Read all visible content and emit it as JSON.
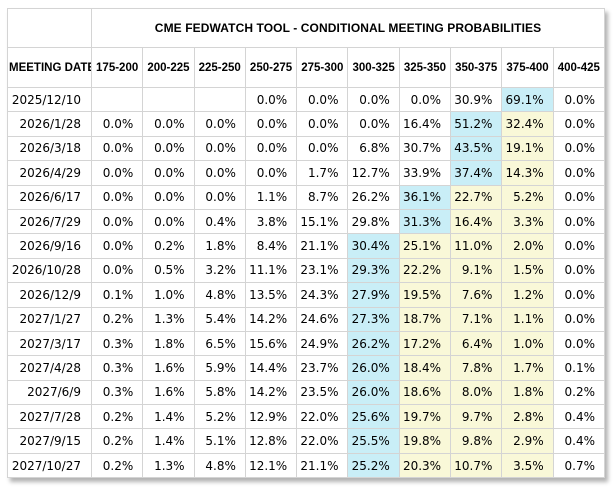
{
  "table": {
    "title": "CME FEDWATCH TOOL - CONDITIONAL MEETING PROBABILITIES",
    "date_column_header": "MEETING DATE",
    "rate_columns": [
      "175-200",
      "200-225",
      "225-250",
      "250-275",
      "275-300",
      "300-325",
      "325-350",
      "350-375",
      "375-400",
      "400-425"
    ],
    "rows": [
      {
        "date": "2025/12/10",
        "values": [
          "",
          "",
          "",
          "0.0%",
          "0.0%",
          "0.0%",
          "0.0%",
          "30.9%",
          "69.1%",
          "0.0%"
        ],
        "styles": [
          "",
          "",
          "",
          "",
          "",
          "",
          "",
          "",
          "blue",
          ""
        ]
      },
      {
        "date": "2026/1/28",
        "values": [
          "0.0%",
          "0.0%",
          "0.0%",
          "0.0%",
          "0.0%",
          "0.0%",
          "16.4%",
          "51.2%",
          "32.4%",
          "0.0%"
        ],
        "styles": [
          "",
          "",
          "",
          "",
          "",
          "",
          "",
          "blue",
          "yellow",
          ""
        ]
      },
      {
        "date": "2026/3/18",
        "values": [
          "0.0%",
          "0.0%",
          "0.0%",
          "0.0%",
          "0.0%",
          "6.8%",
          "30.7%",
          "43.5%",
          "19.1%",
          "0.0%"
        ],
        "styles": [
          "",
          "",
          "",
          "",
          "",
          "",
          "",
          "blue",
          "yellow",
          ""
        ]
      },
      {
        "date": "2026/4/29",
        "values": [
          "0.0%",
          "0.0%",
          "0.0%",
          "0.0%",
          "1.7%",
          "12.7%",
          "33.9%",
          "37.4%",
          "14.3%",
          "0.0%"
        ],
        "styles": [
          "",
          "",
          "",
          "",
          "",
          "",
          "",
          "blue",
          "yellow",
          ""
        ]
      },
      {
        "date": "2026/6/17",
        "values": [
          "0.0%",
          "0.0%",
          "0.0%",
          "1.1%",
          "8.7%",
          "26.2%",
          "36.1%",
          "22.7%",
          "5.2%",
          "0.0%"
        ],
        "styles": [
          "",
          "",
          "",
          "",
          "",
          "",
          "blue",
          "yellow",
          "yellow",
          ""
        ]
      },
      {
        "date": "2026/7/29",
        "values": [
          "0.0%",
          "0.0%",
          "0.4%",
          "3.8%",
          "15.1%",
          "29.8%",
          "31.3%",
          "16.4%",
          "3.3%",
          "0.0%"
        ],
        "styles": [
          "",
          "",
          "",
          "",
          "",
          "",
          "blue",
          "yellow",
          "yellow",
          ""
        ]
      },
      {
        "date": "2026/9/16",
        "values": [
          "0.0%",
          "0.2%",
          "1.8%",
          "8.4%",
          "21.1%",
          "30.4%",
          "25.1%",
          "11.0%",
          "2.0%",
          "0.0%"
        ],
        "styles": [
          "",
          "",
          "",
          "",
          "",
          "blue",
          "yellow",
          "yellow",
          "yellow",
          ""
        ]
      },
      {
        "date": "2026/10/28",
        "values": [
          "0.0%",
          "0.5%",
          "3.2%",
          "11.1%",
          "23.1%",
          "29.3%",
          "22.2%",
          "9.1%",
          "1.5%",
          "0.0%"
        ],
        "styles": [
          "",
          "",
          "",
          "",
          "",
          "blue",
          "yellow",
          "yellow",
          "yellow",
          ""
        ]
      },
      {
        "date": "2026/12/9",
        "values": [
          "0.1%",
          "1.0%",
          "4.8%",
          "13.5%",
          "24.3%",
          "27.9%",
          "19.5%",
          "7.6%",
          "1.2%",
          "0.0%"
        ],
        "styles": [
          "",
          "",
          "",
          "",
          "",
          "blue",
          "yellow",
          "yellow",
          "yellow",
          ""
        ]
      },
      {
        "date": "2027/1/27",
        "values": [
          "0.2%",
          "1.3%",
          "5.4%",
          "14.2%",
          "24.6%",
          "27.3%",
          "18.7%",
          "7.1%",
          "1.1%",
          "0.0%"
        ],
        "styles": [
          "",
          "",
          "",
          "",
          "",
          "blue",
          "yellow",
          "yellow",
          "yellow",
          ""
        ]
      },
      {
        "date": "2027/3/17",
        "values": [
          "0.3%",
          "1.8%",
          "6.5%",
          "15.6%",
          "24.9%",
          "26.2%",
          "17.2%",
          "6.4%",
          "1.0%",
          "0.0%"
        ],
        "styles": [
          "",
          "",
          "",
          "",
          "",
          "blue",
          "yellow",
          "yellow",
          "yellow",
          ""
        ]
      },
      {
        "date": "2027/4/28",
        "values": [
          "0.3%",
          "1.6%",
          "5.9%",
          "14.4%",
          "23.7%",
          "26.0%",
          "18.4%",
          "7.8%",
          "1.7%",
          "0.1%"
        ],
        "styles": [
          "",
          "",
          "",
          "",
          "",
          "blue",
          "yellow",
          "yellow",
          "yellow",
          ""
        ]
      },
      {
        "date": "2027/6/9",
        "values": [
          "0.3%",
          "1.6%",
          "5.8%",
          "14.2%",
          "23.5%",
          "26.0%",
          "18.6%",
          "8.0%",
          "1.8%",
          "0.2%"
        ],
        "styles": [
          "",
          "",
          "",
          "",
          "",
          "blue",
          "yellow",
          "yellow",
          "yellow",
          ""
        ]
      },
      {
        "date": "2027/7/28",
        "values": [
          "0.2%",
          "1.4%",
          "5.2%",
          "12.9%",
          "22.0%",
          "25.6%",
          "19.7%",
          "9.7%",
          "2.8%",
          "0.4%"
        ],
        "styles": [
          "",
          "",
          "",
          "",
          "",
          "blue",
          "yellow",
          "yellow",
          "yellow",
          ""
        ]
      },
      {
        "date": "2027/9/15",
        "values": [
          "0.2%",
          "1.4%",
          "5.1%",
          "12.8%",
          "22.0%",
          "25.5%",
          "19.8%",
          "9.8%",
          "2.9%",
          "0.4%"
        ],
        "styles": [
          "",
          "",
          "",
          "",
          "",
          "blue",
          "yellow",
          "yellow",
          "yellow",
          ""
        ]
      },
      {
        "date": "2027/10/27",
        "values": [
          "0.2%",
          "1.3%",
          "4.8%",
          "12.1%",
          "21.1%",
          "25.2%",
          "20.3%",
          "10.7%",
          "3.5%",
          "0.7%"
        ],
        "styles": [
          "",
          "",
          "",
          "",
          "",
          "blue",
          "yellow",
          "yellow",
          "yellow",
          ""
        ]
      }
    ],
    "colors": {
      "highlight_blue": "#c9eef7",
      "highlight_yellow": "#f9f8d8",
      "border": "#d4d4d4",
      "header_text": "#000000",
      "cell_text": "#000000"
    }
  }
}
